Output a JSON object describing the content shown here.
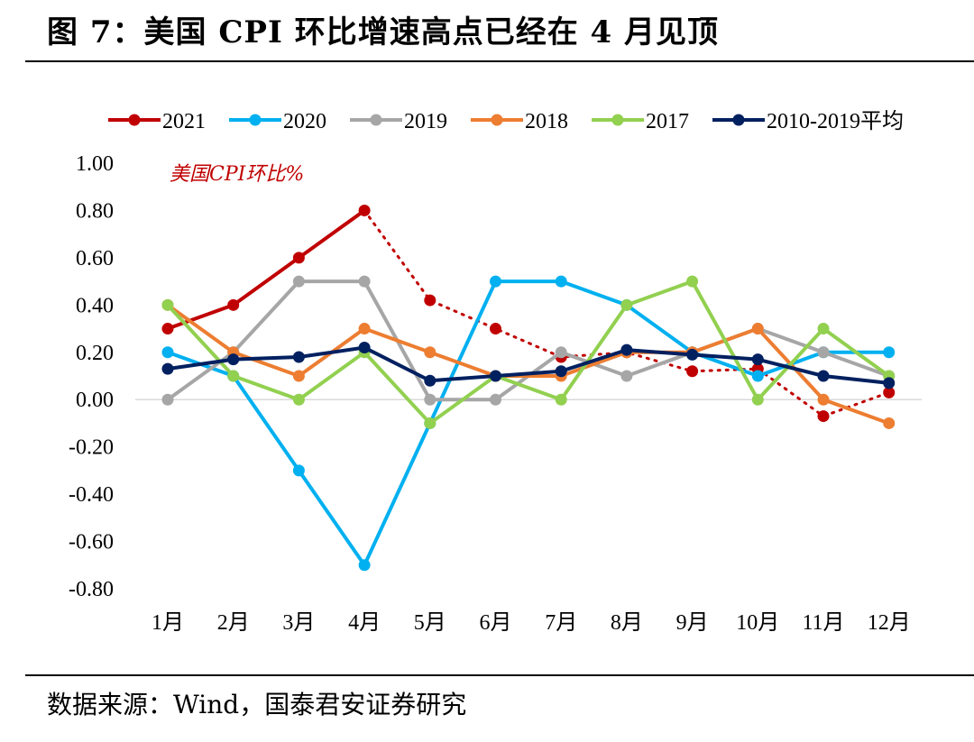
{
  "figure": {
    "title": "图 7：美国 CPI 环比增速高点已经在 4 月见顶",
    "source": "数据来源：Wind，国泰君安证券研究"
  },
  "chart_data": {
    "type": "line",
    "annotation": "美国CPI环比%",
    "annotation_color": "#C00000",
    "categories": [
      "1月",
      "2月",
      "3月",
      "4月",
      "5月",
      "6月",
      "7月",
      "8月",
      "9月",
      "10月",
      "11月",
      "12月"
    ],
    "ylim": [
      -0.8,
      1.0
    ],
    "yticks": [
      "1.00",
      "0.80",
      "0.60",
      "0.40",
      "0.20",
      "0.00",
      "-0.20",
      "-0.40",
      "-0.60",
      "-0.80"
    ],
    "ytick_values": [
      1.0,
      0.8,
      0.6,
      0.4,
      0.2,
      0.0,
      -0.2,
      -0.4,
      -0.6,
      -0.8
    ],
    "legend_position": "top",
    "series": [
      {
        "name": "2021",
        "color": "#C00000",
        "values": [
          0.3,
          0.4,
          0.6,
          0.8,
          0.42,
          0.3,
          0.18,
          0.2,
          0.12,
          0.13,
          -0.07,
          0.03
        ],
        "dashed_from_index": 3
      },
      {
        "name": "2020",
        "color": "#00B0F0",
        "values": [
          0.2,
          0.1,
          -0.3,
          -0.7,
          -0.1,
          0.5,
          0.5,
          0.4,
          0.2,
          0.1,
          0.2,
          0.2
        ]
      },
      {
        "name": "2019",
        "color": "#A6A6A6",
        "values": [
          0.0,
          0.2,
          0.5,
          0.5,
          0.0,
          0.0,
          0.2,
          0.1,
          0.2,
          0.3,
          0.2,
          0.1
        ]
      },
      {
        "name": "2018",
        "color": "#ED7D31",
        "values": [
          0.4,
          0.2,
          0.1,
          0.3,
          0.2,
          0.1,
          0.1,
          0.2,
          0.2,
          0.3,
          0.0,
          -0.1
        ]
      },
      {
        "name": "2017",
        "color": "#92D050",
        "values": [
          0.4,
          0.1,
          0.0,
          0.2,
          -0.1,
          0.1,
          0.0,
          0.4,
          0.5,
          0.0,
          0.3,
          0.1
        ]
      },
      {
        "name": "2010-2019平均",
        "color": "#002060",
        "values": [
          0.13,
          0.17,
          0.18,
          0.22,
          0.08,
          0.1,
          0.12,
          0.21,
          0.19,
          0.17,
          0.1,
          0.07
        ]
      }
    ]
  }
}
